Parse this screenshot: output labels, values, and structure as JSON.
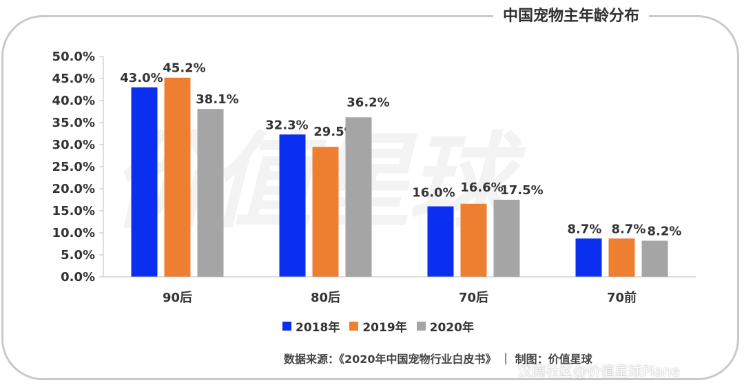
{
  "title": "中国宠物主年龄分布",
  "watermark": "价值星球",
  "source_text": "数据来源：《2020年中国宠物行业白皮书》  ｜  制图：价值星球",
  "overlay_watermark": "汉阔社区@价值星球Plane",
  "chart_data": {
    "type": "bar",
    "categories": [
      "90后",
      "80后",
      "70后",
      "70前"
    ],
    "series": [
      {
        "name": "2018年",
        "color": "#0a2ff0",
        "values": [
          43.0,
          32.3,
          16.0,
          8.7
        ],
        "labels": [
          "43.0%",
          "32.3%",
          "16.0%",
          "8.7%"
        ]
      },
      {
        "name": "2019年",
        "color": "#ee7f30",
        "values": [
          45.2,
          29.5,
          16.6,
          8.7
        ],
        "labels": [
          "45.2%",
          "29.5%",
          "16.6%",
          "8.7%"
        ]
      },
      {
        "name": "2020年",
        "color": "#a5a5a5",
        "values": [
          38.1,
          36.2,
          17.5,
          8.2
        ],
        "labels": [
          "38.1%",
          "36.2%",
          "17.5%",
          "8.2%"
        ]
      }
    ],
    "yticks": [
      "0.0%",
      "5.0%",
      "10.0%",
      "15.0%",
      "20.0%",
      "25.0%",
      "30.0%",
      "35.0%",
      "40.0%",
      "45.0%",
      "50.0%"
    ],
    "ylim": [
      0,
      50
    ],
    "legend_position": "bottom"
  }
}
